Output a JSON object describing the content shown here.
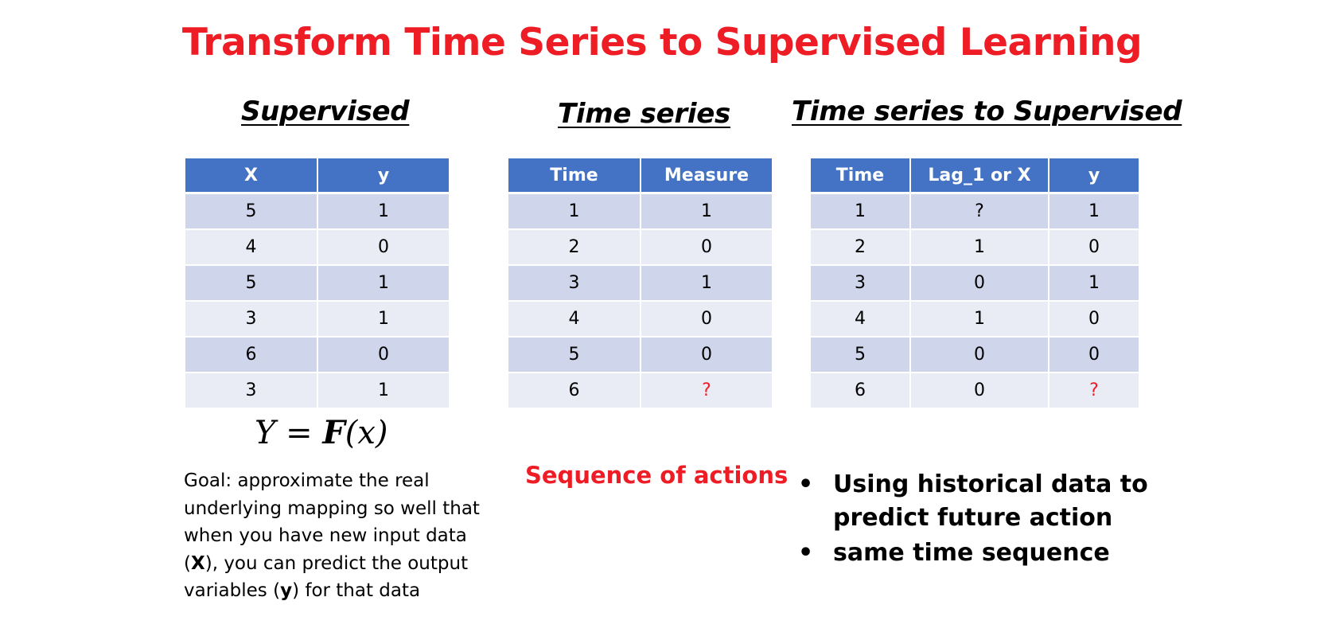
{
  "title": "Transform Time Series to Supervised Learning",
  "supervised": {
    "heading": "Supervised",
    "headers": [
      "X",
      "y"
    ],
    "rows": [
      [
        "5",
        "1"
      ],
      [
        "4",
        "0"
      ],
      [
        "5",
        "1"
      ],
      [
        "3",
        "1"
      ],
      [
        "6",
        "0"
      ],
      [
        "3",
        "1"
      ]
    ],
    "formula": {
      "lhs": "Y",
      "eq": " = ",
      "fn": "F",
      "arg": "(x)"
    },
    "goal": {
      "t1": "Goal: approximate the real underlying mapping so well that when you have new input data (",
      "b1": "X",
      "t2": "), you can predict the output variables (",
      "b2": "y",
      "t3": ") for that data"
    }
  },
  "timeseries": {
    "heading": "Time series",
    "headers": [
      "Time",
      "Measure"
    ],
    "rows": [
      [
        "1",
        "1"
      ],
      [
        "2",
        "0"
      ],
      [
        "3",
        "1"
      ],
      [
        "4",
        "0"
      ],
      [
        "5",
        "0"
      ],
      [
        "6",
        "?"
      ]
    ],
    "caption": "Sequence of actions"
  },
  "ts_to_supervised": {
    "heading": "Time series to Supervised",
    "headers": [
      "Time",
      "Lag_1 or X",
      "y"
    ],
    "rows": [
      [
        "1",
        "?",
        "1"
      ],
      [
        "2",
        "1",
        "0"
      ],
      [
        "3",
        "0",
        "1"
      ],
      [
        "4",
        "1",
        "0"
      ],
      [
        "5",
        "0",
        "0"
      ],
      [
        "6",
        "0",
        "?"
      ]
    ],
    "bullets": [
      "Using historical data to predict future action",
      "same time sequence"
    ],
    "bullet_symbol": "•"
  },
  "colors": {
    "accent_red": "#ee1c25",
    "header_blue": "#4472c4",
    "row_dark": "#cfd5ea",
    "row_light": "#e9ebf5"
  }
}
